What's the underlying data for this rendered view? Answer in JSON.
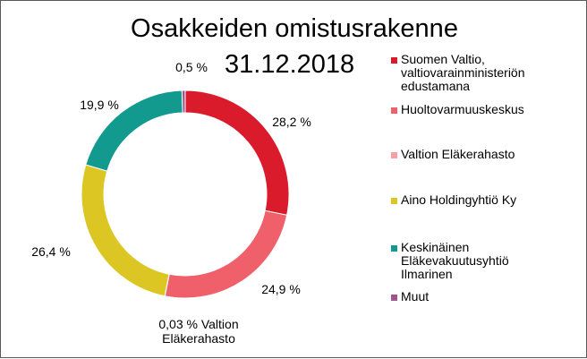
{
  "chart_data": {
    "type": "pie",
    "variant": "doughnut",
    "title": "Osakkeiden omistusrakenne",
    "subtitle": "31.12.2018",
    "unit": "%",
    "legend_position": "right",
    "slices": [
      {
        "name": "Suomen Valtio,\nvaltiovarainministeriön\nedustamana",
        "value": 28.2,
        "label": "28,2 %",
        "color": "#d91b2b"
      },
      {
        "name": "Huoltovarmuuskeskus",
        "value": 24.9,
        "label": "24,9 %",
        "color": "#f0606a"
      },
      {
        "name": "Valtion Eläkerahasto",
        "value": 0.03,
        "label": "0,03 % Valtion\nEläkerahasto",
        "color": "#f5a0a3"
      },
      {
        "name": "Aino Holdingyhtiö Ky",
        "value": 26.4,
        "label": "26,4 %",
        "color": "#dcc624"
      },
      {
        "name": "Keskinäinen\nEläkevakuutusyhtiö\nIlmarinen",
        "value": 19.9,
        "label": "19,9 %",
        "color": "#129a8e"
      },
      {
        "name": "Muut",
        "value": 0.5,
        "label": "0,5 %",
        "color": "#a05490"
      }
    ]
  }
}
